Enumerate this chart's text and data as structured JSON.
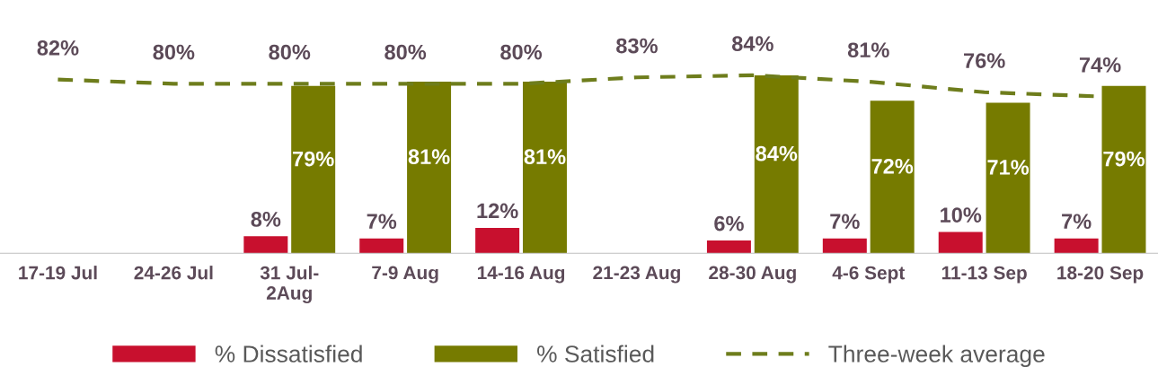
{
  "chart_data": {
    "type": "bar",
    "categories": [
      "17-19 Jul",
      "24-26 Jul",
      "31 Jul-\n2Aug",
      "7-9 Aug",
      "14-16 Aug",
      "21-23 Aug",
      "28-30 Aug",
      "4-6 Sept",
      "11-13 Sep",
      "18-20 Sep"
    ],
    "series": [
      {
        "name": "% Dissatisfied",
        "color": "#c8102e",
        "values": [
          null,
          null,
          8,
          7,
          12,
          null,
          6,
          7,
          10,
          7
        ],
        "value_labels": [
          null,
          null,
          "8%",
          "7%",
          "12%",
          null,
          "6%",
          "7%",
          "10%",
          "7%"
        ]
      },
      {
        "name": "% Satisfied",
        "color": "#767b00",
        "values": [
          null,
          null,
          79,
          81,
          81,
          null,
          84,
          72,
          71,
          79
        ],
        "value_labels": [
          null,
          null,
          "79%",
          "81%",
          "81%",
          null,
          "84%",
          "72%",
          "71%",
          "79%"
        ]
      },
      {
        "name": "Three-week average",
        "type": "line",
        "color": "#6e7d1c",
        "line_style": "dashed",
        "marker": "none",
        "values": [
          82,
          80,
          80,
          80,
          80,
          83,
          84,
          81,
          76,
          74
        ],
        "value_labels": [
          "82%",
          "80%",
          "80%",
          "80%",
          "80%",
          "83%",
          "84%",
          "81%",
          "76%",
          "74%"
        ]
      }
    ],
    "legend": "bottom",
    "grid": false
  }
}
